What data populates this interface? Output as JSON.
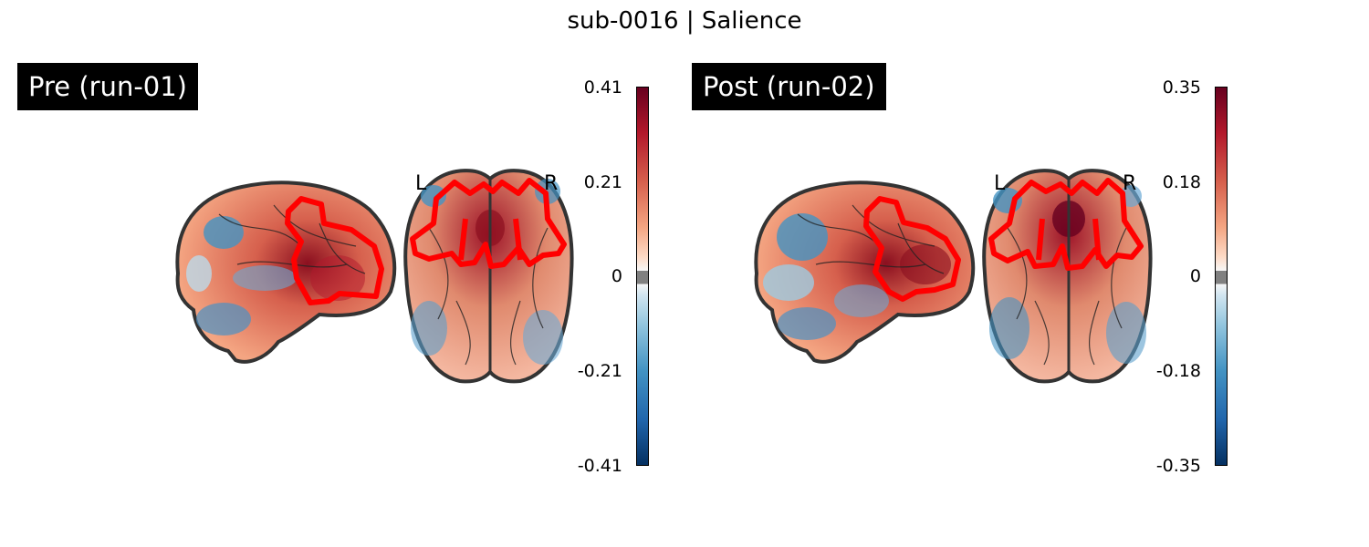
{
  "title": "sub-0016 | Salience",
  "panels": [
    {
      "label": "Pre (run-01)",
      "colorbar": {
        "ticks": [
          "0.41",
          "0.21",
          "0",
          "-0.21",
          "-0.41"
        ],
        "vmax": 0.41,
        "vmin": -0.41
      },
      "orientation": {
        "left": "L",
        "right": "R"
      }
    },
    {
      "label": "Post (run-02)",
      "colorbar": {
        "ticks": [
          "0.35",
          "0.18",
          "0",
          "-0.18",
          "-0.35"
        ],
        "vmax": 0.35,
        "vmin": -0.35
      },
      "orientation": {
        "left": "L",
        "right": "R"
      }
    }
  ],
  "colors": {
    "roi_outline": "#ff0000",
    "brain_outline": "#333333",
    "positive": "#b2182b",
    "negative": "#2166ac",
    "threshold": "#808080"
  }
}
